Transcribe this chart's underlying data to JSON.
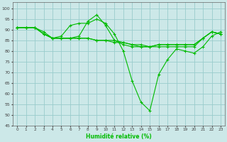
{
  "xlabel": "Humidité relative (%)",
  "background_color": "#cce8e8",
  "grid_color": "#99cccc",
  "line_color": "#00bb00",
  "xlim": [
    -0.5,
    23.5
  ],
  "ylim": [
    45,
    103
  ],
  "yticks": [
    45,
    50,
    55,
    60,
    65,
    70,
    75,
    80,
    85,
    90,
    95,
    100
  ],
  "xticks": [
    0,
    1,
    2,
    3,
    4,
    5,
    6,
    7,
    8,
    9,
    10,
    11,
    12,
    13,
    14,
    15,
    16,
    17,
    18,
    19,
    20,
    21,
    22,
    23
  ],
  "series": [
    [
      91,
      91,
      91,
      89,
      86,
      87,
      92,
      93,
      93,
      95,
      93,
      88,
      80,
      66,
      56,
      52,
      69,
      76,
      81,
      80,
      79,
      82,
      87,
      89
    ],
    [
      91,
      91,
      91,
      88,
      86,
      86,
      86,
      86,
      86,
      85,
      85,
      85,
      84,
      83,
      82,
      82,
      83,
      83,
      83,
      83,
      83,
      86,
      89,
      88
    ],
    [
      91,
      91,
      91,
      88,
      86,
      86,
      86,
      87,
      94,
      97,
      92,
      85,
      83,
      82,
      82,
      82,
      83,
      83,
      83,
      83,
      83,
      86,
      89,
      88
    ],
    [
      91,
      91,
      91,
      88,
      86,
      86,
      86,
      86,
      86,
      85,
      85,
      84,
      84,
      83,
      83,
      82,
      82,
      82,
      82,
      82,
      82,
      86,
      89,
      88
    ]
  ]
}
